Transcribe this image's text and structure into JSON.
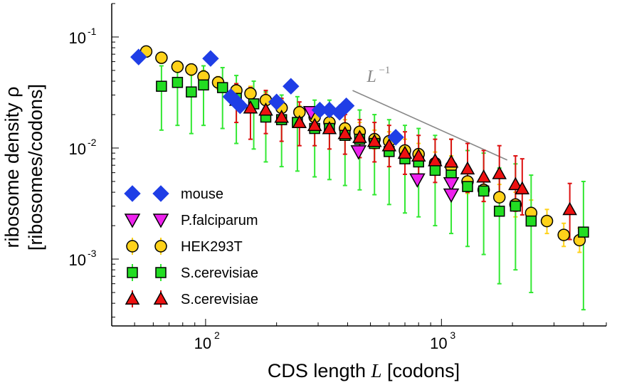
{
  "chart_data": {
    "type": "scatter",
    "xscale": "log",
    "yscale": "log",
    "xlim": [
      40,
      5000
    ],
    "ylim": [
      0.00025,
      0.2
    ],
    "xlabel": "CDS length L [codons]",
    "ylabel_line1": "ribosome density ρ",
    "ylabel_line2": "[ribosomes/codons]",
    "xticks": [
      {
        "value": 100,
        "base": "10",
        "exp": "2"
      },
      {
        "value": 1000,
        "base": "10",
        "exp": "3"
      }
    ],
    "yticks": [
      {
        "value": 0.1,
        "base": "10",
        "exp": "-1"
      },
      {
        "value": 0.01,
        "base": "10",
        "exp": "-2"
      },
      {
        "value": 0.001,
        "base": "10",
        "exp": "-3"
      }
    ],
    "annotation": {
      "text_base": "L",
      "text_exp": "−1",
      "line": [
        [
          420,
          0.033
        ],
        [
          1900,
          0.0078
        ]
      ]
    },
    "legend_position": "bottom-left",
    "series": [
      {
        "name": "mouse",
        "marker": "diamond",
        "color": "#1f3ee6",
        "errcolor": "#1f3ee6",
        "points": [
          [
            52,
            0.066
          ],
          [
            105,
            0.064
          ],
          [
            128,
            0.029
          ],
          [
            135,
            0.026
          ],
          [
            140,
            0.024
          ],
          [
            200,
            0.026
          ],
          [
            230,
            0.036
          ],
          [
            305,
            0.022
          ],
          [
            335,
            0.022
          ],
          [
            370,
            0.021
          ],
          [
            395,
            0.024
          ],
          [
            640,
            0.0125
          ]
        ]
      },
      {
        "name": "P.falciparum",
        "marker": "triangle-down",
        "color": "#ee22ee",
        "errcolor": "#ee22ee",
        "points": [
          [
            280,
            0.021
          ],
          [
            445,
            0.0093
          ],
          [
            790,
            0.0052
          ],
          [
            1100,
            0.0048
          ],
          [
            1100,
            0.0038
          ]
        ]
      },
      {
        "name": "HEK293T",
        "marker": "circle",
        "color": "#ffd21a",
        "errcolor": "#ffd21a",
        "points": [
          [
            56,
            0.074,
            0.082,
            0.066
          ],
          [
            65,
            0.065,
            0.072,
            0.058
          ],
          [
            76,
            0.054,
            0.06,
            0.048
          ],
          [
            87,
            0.051,
            0.057,
            0.045
          ],
          [
            98,
            0.044,
            0.05,
            0.039
          ],
          [
            113,
            0.039,
            0.044,
            0.034
          ],
          [
            135,
            0.033,
            0.038,
            0.028
          ],
          [
            155,
            0.031,
            0.036,
            0.026
          ],
          [
            180,
            0.027,
            0.031,
            0.023
          ],
          [
            210,
            0.023,
            0.027,
            0.02
          ],
          [
            250,
            0.021,
            0.024,
            0.018
          ],
          [
            290,
            0.019,
            0.022,
            0.016
          ],
          [
            335,
            0.017,
            0.02,
            0.0145
          ],
          [
            390,
            0.015,
            0.018,
            0.0125
          ],
          [
            450,
            0.014,
            0.017,
            0.0115
          ],
          [
            520,
            0.012,
            0.0145,
            0.0098
          ],
          [
            600,
            0.0115,
            0.014,
            0.0093
          ],
          [
            700,
            0.0095,
            0.012,
            0.0075
          ],
          [
            800,
            0.0088,
            0.011,
            0.007
          ],
          [
            940,
            0.0073,
            0.0092,
            0.0057
          ],
          [
            1100,
            0.0068,
            0.0085,
            0.0053
          ],
          [
            1290,
            0.005,
            0.0065,
            0.0039
          ],
          [
            1510,
            0.0042,
            0.0054,
            0.0033
          ],
          [
            1760,
            0.0036,
            0.0047,
            0.0027
          ],
          [
            2060,
            0.0031,
            0.004,
            0.0024
          ],
          [
            2400,
            0.0026,
            0.0034,
            0.002
          ],
          [
            2800,
            0.0022,
            0.0028,
            0.0017
          ],
          [
            3300,
            0.00165,
            0.0021,
            0.0013
          ],
          [
            3850,
            0.00148,
            0.0019,
            0.00115
          ]
        ]
      },
      {
        "name": "S.cerevisiae",
        "marker": "square",
        "color": "#22dd22",
        "errcolor": "#33e833",
        "points": [
          [
            65,
            0.036,
            0.055,
            0.0145
          ],
          [
            76,
            0.039,
            0.058,
            0.016
          ],
          [
            87,
            0.032,
            0.05,
            0.0135
          ],
          [
            98,
            0.037,
            0.055,
            0.016
          ],
          [
            118,
            0.035,
            0.053,
            0.015
          ],
          [
            135,
            0.028,
            0.045,
            0.011
          ],
          [
            160,
            0.025,
            0.04,
            0.0098
          ],
          [
            180,
            0.019,
            0.032,
            0.0075
          ],
          [
            210,
            0.018,
            0.03,
            0.0068
          ],
          [
            245,
            0.017,
            0.029,
            0.0062
          ],
          [
            290,
            0.015,
            0.027,
            0.0055
          ],
          [
            335,
            0.015,
            0.027,
            0.0052
          ],
          [
            390,
            0.013,
            0.024,
            0.0046
          ],
          [
            450,
            0.012,
            0.022,
            0.0042
          ],
          [
            520,
            0.011,
            0.02,
            0.0038
          ],
          [
            600,
            0.0093,
            0.018,
            0.0031
          ],
          [
            700,
            0.008,
            0.016,
            0.0026
          ],
          [
            800,
            0.0075,
            0.015,
            0.0024
          ],
          [
            940,
            0.0063,
            0.013,
            0.002
          ],
          [
            1100,
            0.0057,
            0.012,
            0.0017
          ],
          [
            1290,
            0.0045,
            0.0095,
            0.0013
          ],
          [
            1510,
            0.0041,
            0.009,
            0.0011
          ],
          [
            1760,
            0.0027,
            0.0066,
            0.0006
          ],
          [
            2060,
            0.003,
            0.0072,
            0.0008
          ],
          [
            2400,
            0.0022,
            0.0057,
            0.0005
          ],
          [
            4000,
            0.00175,
            0.005,
            0.00035
          ]
        ]
      },
      {
        "name": "S.cerevisiae",
        "marker": "triangle-up",
        "color": "#ee1111",
        "errcolor": "#dd1111",
        "points": [
          [
            135,
            0.027,
            0.038,
            0.017
          ],
          [
            155,
            0.023,
            0.035,
            0.012
          ],
          [
            180,
            0.022,
            0.033,
            0.0135
          ],
          [
            210,
            0.019,
            0.028,
            0.0115
          ],
          [
            250,
            0.017,
            0.026,
            0.0105
          ],
          [
            290,
            0.016,
            0.023,
            0.0105
          ],
          [
            335,
            0.015,
            0.022,
            0.0098
          ],
          [
            390,
            0.0135,
            0.02,
            0.0088
          ],
          [
            450,
            0.0125,
            0.018,
            0.0082
          ],
          [
            520,
            0.0115,
            0.017,
            0.0075
          ],
          [
            600,
            0.0105,
            0.016,
            0.0068
          ],
          [
            700,
            0.009,
            0.014,
            0.0058
          ],
          [
            800,
            0.0085,
            0.013,
            0.0055
          ],
          [
            940,
            0.0077,
            0.012,
            0.0049
          ],
          [
            1100,
            0.0075,
            0.012,
            0.0047
          ],
          [
            1290,
            0.0065,
            0.011,
            0.004
          ],
          [
            1510,
            0.0055,
            0.0095,
            0.0033
          ],
          [
            1760,
            0.0059,
            0.0105,
            0.0034
          ],
          [
            2060,
            0.0047,
            0.0085,
            0.0027
          ],
          [
            2200,
            0.0043,
            0.008,
            0.0025
          ],
          [
            3500,
            0.0028,
            0.0048,
            0.0015
          ]
        ]
      }
    ]
  }
}
